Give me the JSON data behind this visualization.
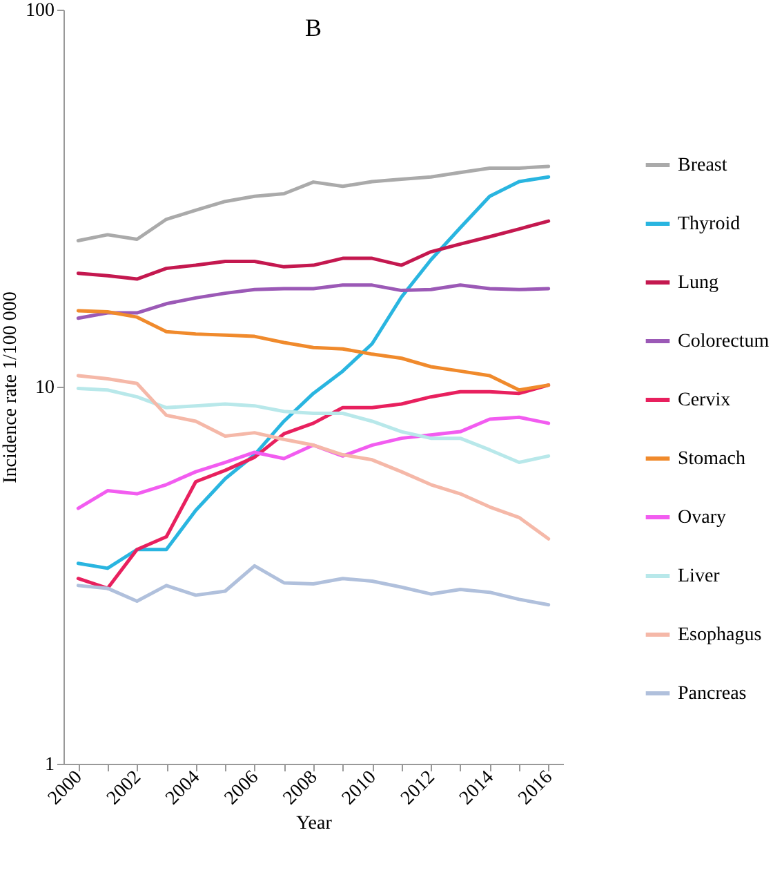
{
  "chart_data": {
    "type": "line",
    "title": "B",
    "xlabel": "Year",
    "ylabel": "Incidence rate 1/100 000",
    "log": "y",
    "grid": false,
    "legend": "right",
    "marker": "none",
    "line_style": "solid",
    "x": [
      2000,
      2001,
      2002,
      2003,
      2004,
      2005,
      2006,
      2007,
      2008,
      2009,
      2010,
      2011,
      2012,
      2013,
      2014,
      2015,
      2016
    ],
    "xlim": [
      1999.5,
      2016.5
    ],
    "xticks": [
      2000,
      {
        "value": 2001,
        "label": null
      },
      2002,
      {
        "value": 2003,
        "label": null
      },
      2004,
      {
        "value": 2005,
        "label": null
      },
      2006,
      {
        "value": 2007,
        "label": null
      },
      2008,
      {
        "value": 2009,
        "label": null
      },
      2010,
      {
        "value": 2011,
        "label": null
      },
      2012,
      {
        "value": 2013,
        "label": null
      },
      2014,
      {
        "value": 2015,
        "label": null
      },
      2016
    ],
    "ylim": [
      1,
      100
    ],
    "yticks": [
      1,
      10,
      100
    ],
    "series": [
      {
        "name": "Breast",
        "color": "#aaaaaa",
        "values": [
          24.4,
          25.3,
          24.6,
          27.8,
          29.4,
          31,
          32,
          32.5,
          34.9,
          34,
          35,
          35.5,
          36,
          37,
          38,
          38,
          38.4
        ]
      },
      {
        "name": "Thyroid",
        "color": "#29b5e0",
        "values": [
          3.4,
          3.3,
          3.7,
          3.7,
          4.7,
          5.7,
          6.6,
          8.1,
          9.6,
          11,
          13,
          17.3,
          21.7,
          26.4,
          32,
          35,
          36
        ]
      },
      {
        "name": "Lung",
        "color": "#c4184f",
        "values": [
          20,
          19.7,
          19.3,
          20.6,
          21,
          21.5,
          21.5,
          20.8,
          21,
          21.9,
          21.9,
          21,
          22.8,
          23.9,
          25,
          26.2,
          27.5
        ]
      },
      {
        "name": "Colorectum",
        "color": "#9b59b6",
        "values": [
          15.2,
          15.7,
          15.7,
          16.6,
          17.2,
          17.7,
          18.1,
          18.2,
          18.2,
          18.6,
          18.6,
          18,
          18.1,
          18.6,
          18.2,
          18.1,
          18.2
        ]
      },
      {
        "name": "Cervix",
        "color": "#e8205e",
        "values": [
          3.1,
          2.92,
          3.7,
          4,
          5.6,
          6,
          6.5,
          7.5,
          8,
          8.8,
          8.8,
          9,
          9.4,
          9.7,
          9.7,
          9.6,
          10.1
        ]
      },
      {
        "name": "Stomach",
        "color": "#f08a2c",
        "values": [
          15.9,
          15.8,
          15.3,
          14,
          13.8,
          13.7,
          13.6,
          13.1,
          12.7,
          12.6,
          12.2,
          11.9,
          11.3,
          11,
          10.7,
          9.8,
          10.1
        ]
      },
      {
        "name": "Ovary",
        "color": "#f25cf0",
        "values": [
          4.76,
          5.3,
          5.2,
          5.5,
          5.95,
          6.3,
          6.7,
          6.45,
          7,
          6.55,
          7,
          7.3,
          7.45,
          7.6,
          8.2,
          8.3,
          8
        ]
      },
      {
        "name": "Liver",
        "color": "#b8e8ea",
        "values": [
          9.9,
          9.8,
          9.4,
          8.8,
          8.9,
          9,
          8.9,
          8.6,
          8.5,
          8.5,
          8.1,
          7.6,
          7.3,
          7.3,
          6.8,
          6.3,
          6.55
        ]
      },
      {
        "name": "Esophagus",
        "color": "#f5b8a8",
        "values": [
          10.7,
          10.5,
          10.2,
          8.4,
          8.1,
          7.4,
          7.55,
          7.25,
          7,
          6.6,
          6.4,
          5.95,
          5.5,
          5.2,
          4.8,
          4.5,
          3.95
        ]
      },
      {
        "name": "Pancreas",
        "color": "#b0c0dc",
        "values": [
          2.97,
          2.92,
          2.7,
          2.97,
          2.8,
          2.87,
          3.35,
          3.02,
          3,
          3.1,
          3.05,
          2.94,
          2.82,
          2.9,
          2.85,
          2.73,
          2.64
        ]
      }
    ]
  }
}
